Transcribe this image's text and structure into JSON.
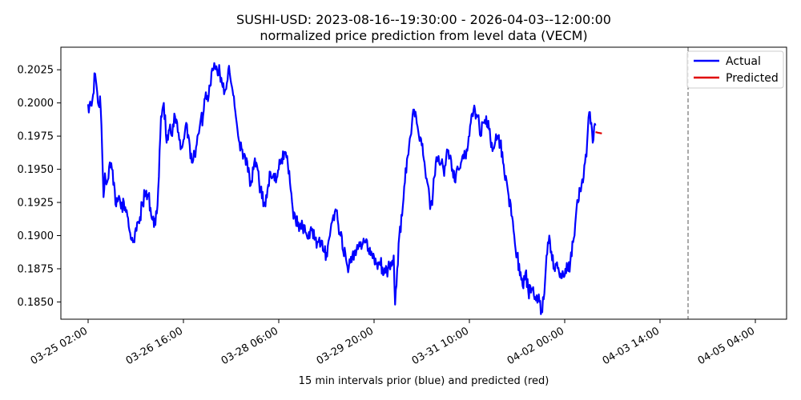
{
  "chart_data": {
    "type": "line",
    "title": "SUSHI-USD: 2023-08-16--19:30:00 - 2026-04-03--12:00:00",
    "subtitle": "normalized price prediction from level data (VECM)",
    "xlabel": "15 min intervals prior (blue) and predicted (red)",
    "ylabel": "",
    "x_ticks": [
      "03-25 02:00",
      "03-26 16:00",
      "03-28 06:00",
      "03-29 20:00",
      "03-31 10:00",
      "04-02 00:00",
      "04-03 14:00",
      "04-05 04:00"
    ],
    "y_ticks": [
      "0.1850",
      "0.1875",
      "0.1900",
      "0.1925",
      "0.1950",
      "0.1975",
      "0.2000",
      "0.2025"
    ],
    "ylim": [
      0.1837,
      0.2042
    ],
    "legend_position": "upper right",
    "forecast_divider_index": 856,
    "series": [
      {
        "name": "Actual",
        "color": "#0000ff",
        "x_start": 0,
        "step": 1,
        "keypoints": [
          [
            0,
            0.1999
          ],
          [
            4,
            0.1998
          ],
          [
            7,
            0.2006
          ],
          [
            10,
            0.2022
          ],
          [
            13,
            0.2008
          ],
          [
            15,
            0.1998
          ],
          [
            17,
            0.2005
          ],
          [
            20,
            0.1965
          ],
          [
            22,
            0.1929
          ],
          [
            24,
            0.1947
          ],
          [
            27,
            0.194
          ],
          [
            30,
            0.1952
          ],
          [
            34,
            0.195
          ],
          [
            37,
            0.194
          ],
          [
            40,
            0.1922
          ],
          [
            44,
            0.193
          ],
          [
            48,
            0.1925
          ],
          [
            52,
            0.1919
          ],
          [
            56,
            0.1915
          ],
          [
            60,
            0.1902
          ],
          [
            64,
            0.1895
          ],
          [
            67,
            0.1903
          ],
          [
            70,
            0.191
          ],
          [
            74,
            0.1914
          ],
          [
            78,
            0.1925
          ],
          [
            82,
            0.1932
          ],
          [
            86,
            0.193
          ],
          [
            90,
            0.1915
          ],
          [
            96,
            0.1908
          ],
          [
            100,
            0.1935
          ],
          [
            104,
            0.199
          ],
          [
            108,
            0.2
          ],
          [
            112,
            0.197
          ],
          [
            116,
            0.198
          ],
          [
            120,
            0.1975
          ],
          [
            124,
            0.199
          ],
          [
            128,
            0.1978
          ],
          [
            132,
            0.1965
          ],
          [
            136,
            0.1972
          ],
          [
            140,
            0.1985
          ],
          [
            144,
            0.1973
          ],
          [
            148,
            0.1955
          ],
          [
            152,
            0.196
          ],
          [
            156,
            0.1975
          ],
          [
            160,
            0.1985
          ],
          [
            164,
            0.199
          ],
          [
            168,
            0.2008
          ],
          [
            172,
            0.2005
          ],
          [
            176,
            0.2023
          ],
          [
            180,
            0.203
          ],
          [
            184,
            0.2025
          ],
          [
            188,
            0.2022
          ],
          [
            192,
            0.2012
          ],
          [
            196,
            0.201
          ],
          [
            200,
            0.2025
          ],
          [
            204,
            0.2015
          ],
          [
            208,
            0.2005
          ],
          [
            212,
            0.1985
          ],
          [
            216,
            0.197
          ],
          [
            220,
            0.1965
          ],
          [
            224,
            0.196
          ],
          [
            228,
            0.1948
          ],
          [
            232,
            0.1938
          ],
          [
            236,
            0.195
          ],
          [
            240,
            0.1955
          ],
          [
            244,
            0.194
          ],
          [
            248,
            0.1928
          ],
          [
            252,
            0.1925
          ],
          [
            256,
            0.1935
          ],
          [
            260,
            0.1948
          ],
          [
            264,
            0.1945
          ],
          [
            268,
            0.194
          ],
          [
            272,
            0.195
          ],
          [
            276,
            0.1958
          ],
          [
            280,
            0.1963
          ],
          [
            284,
            0.196
          ],
          [
            288,
            0.194
          ],
          [
            292,
            0.192
          ],
          [
            296,
            0.1912
          ],
          [
            300,
            0.191
          ],
          [
            304,
            0.1905
          ],
          [
            308,
            0.1908
          ],
          [
            312,
            0.19
          ],
          [
            316,
            0.1898
          ],
          [
            320,
            0.1905
          ],
          [
            324,
            0.1898
          ],
          [
            328,
            0.1895
          ],
          [
            332,
            0.1893
          ],
          [
            336,
            0.1888
          ],
          [
            340,
            0.1887
          ],
          [
            344,
            0.1898
          ],
          [
            348,
            0.191
          ],
          [
            352,
            0.1918
          ],
          [
            356,
            0.1912
          ],
          [
            360,
            0.19
          ],
          [
            364,
            0.1888
          ],
          [
            368,
            0.1882
          ],
          [
            372,
            0.1876
          ],
          [
            376,
            0.188
          ],
          [
            380,
            0.1888
          ],
          [
            384,
            0.1893
          ],
          [
            388,
            0.1892
          ],
          [
            392,
            0.1894
          ],
          [
            396,
            0.1895
          ],
          [
            400,
            0.189
          ],
          [
            404,
            0.1888
          ],
          [
            408,
            0.1884
          ],
          [
            412,
            0.1879
          ],
          [
            416,
            0.188
          ],
          [
            420,
            0.1876
          ],
          [
            424,
            0.1872
          ],
          [
            428,
            0.1876
          ],
          [
            432,
            0.188
          ],
          [
            436,
            0.1885
          ],
          [
            438,
            0.1848
          ],
          [
            441,
            0.1875
          ],
          [
            444,
            0.19
          ],
          [
            448,
            0.1915
          ],
          [
            452,
            0.194
          ],
          [
            456,
            0.196
          ],
          [
            460,
            0.1975
          ],
          [
            464,
            0.1995
          ],
          [
            468,
            0.199
          ],
          [
            472,
            0.1975
          ],
          [
            476,
            0.1968
          ],
          [
            480,
            0.1955
          ],
          [
            484,
            0.194
          ],
          [
            488,
            0.192
          ],
          [
            492,
            0.1932
          ],
          [
            496,
            0.1955
          ],
          [
            500,
            0.196
          ],
          [
            504,
            0.1955
          ],
          [
            508,
            0.1945
          ],
          [
            512,
            0.1965
          ],
          [
            516,
            0.196
          ],
          [
            520,
            0.195
          ],
          [
            524,
            0.194
          ],
          [
            528,
            0.195
          ],
          [
            532,
            0.1955
          ],
          [
            536,
            0.1958
          ],
          [
            540,
            0.1965
          ],
          [
            544,
            0.1975
          ],
          [
            548,
            0.1992
          ],
          [
            552,
            0.1995
          ],
          [
            556,
            0.199
          ],
          [
            560,
            0.1975
          ],
          [
            564,
            0.1985
          ],
          [
            568,
            0.199
          ],
          [
            572,
            0.198
          ],
          [
            576,
            0.197
          ],
          [
            580,
            0.1968
          ],
          [
            584,
            0.1975
          ],
          [
            588,
            0.197
          ],
          [
            592,
            0.1955
          ],
          [
            596,
            0.1945
          ],
          [
            600,
            0.193
          ],
          [
            604,
            0.1915
          ],
          [
            608,
            0.19
          ],
          [
            612,
            0.1885
          ],
          [
            616,
            0.187
          ],
          [
            620,
            0.1862
          ],
          [
            624,
            0.1872
          ],
          [
            628,
            0.1858
          ],
          [
            632,
            0.1857
          ],
          [
            636,
            0.1855
          ],
          [
            640,
            0.1855
          ],
          [
            644,
            0.185
          ],
          [
            647,
            0.1843
          ],
          [
            650,
            0.1852
          ],
          [
            653,
            0.1875
          ],
          [
            656,
            0.1895
          ],
          [
            658,
            0.19
          ],
          [
            661,
            0.1888
          ],
          [
            664,
            0.1875
          ],
          [
            668,
            0.1878
          ],
          [
            672,
            0.1872
          ],
          [
            676,
            0.1868
          ],
          [
            680,
            0.187
          ],
          [
            684,
            0.1875
          ],
          [
            688,
            0.188
          ],
          [
            692,
            0.1895
          ],
          [
            696,
            0.1915
          ],
          [
            699,
            0.1925
          ],
          [
            702,
            0.1935
          ],
          [
            706,
            0.194
          ],
          [
            709,
            0.1955
          ],
          [
            712,
            0.197
          ],
          [
            715,
            0.1993
          ],
          [
            718,
            0.1985
          ],
          [
            720,
            0.197
          ],
          [
            722,
            0.1982
          ],
          [
            724,
            0.1983
          ]
        ]
      },
      {
        "name": "Predicted",
        "color": "#e00000",
        "x_start": 724,
        "step": 1,
        "values": [
          0.1978,
          0.19779,
          0.19778,
          0.19776,
          0.19775,
          0.19774,
          0.19773,
          0.19772,
          0.19771,
          0.1977
        ]
      }
    ]
  }
}
